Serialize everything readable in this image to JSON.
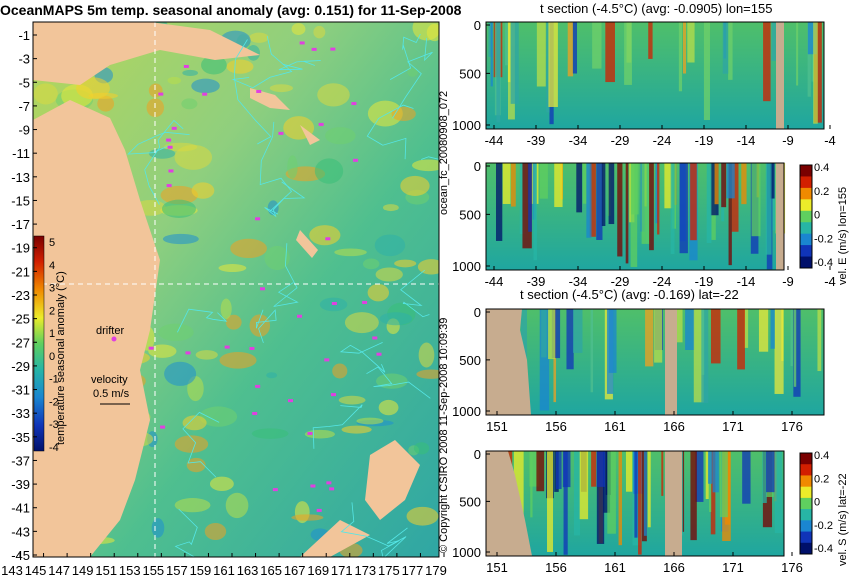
{
  "chart_data": [
    {
      "type": "heatmap",
      "title": "OceanMAPS 5m temp. seasonal anomaly (avg: 0.151) for 11-Sep-2008",
      "x_ticks": [
        "143",
        "145",
        "147",
        "149",
        "151",
        "153",
        "155",
        "157",
        "159",
        "161",
        "163",
        "165",
        "167",
        "169",
        "171",
        "173",
        "175",
        "177",
        "179"
      ],
      "y_ticks": [
        "-1",
        "-3",
        "-5",
        "-7",
        "-9",
        "-11",
        "-13",
        "-15",
        "-17",
        "-19",
        "-21",
        "-23",
        "-25",
        "-27",
        "-29",
        "-31",
        "-33",
        "-35",
        "-37",
        "-39",
        "-41",
        "-43",
        "-45"
      ],
      "colorbar": {
        "label": "temperature seasonal anomaly (°C)",
        "ticks": [
          "5",
          "4",
          "3",
          "2",
          "1",
          "0",
          "-1",
          "-2",
          "-3",
          "-4"
        ],
        "range": [
          -4,
          5
        ]
      },
      "annotations": {
        "drifter": "drifter",
        "velocity": "velocity",
        "velocity_value": "0.5 m/s"
      },
      "crosshair": {
        "lon": 155,
        "lat": -22
      }
    },
    {
      "type": "heatmap",
      "title": "t section (-4.5°C) (avg: -0.0905) lon=155",
      "x_ticks": [
        "-44",
        "-39",
        "-34",
        "-29",
        "-24",
        "-19",
        "-14",
        "-9",
        "-4"
      ],
      "y_ticks": [
        "0",
        "500",
        "1000"
      ]
    },
    {
      "type": "heatmap",
      "x_ticks": [
        "-44",
        "-39",
        "-34",
        "-29",
        "-24",
        "-19",
        "-14",
        "-9",
        "-4"
      ],
      "y_ticks": [
        "0",
        "500",
        "1000"
      ],
      "colorbar": {
        "label": "vel. E (m/s) lon=155",
        "ticks": [
          "0.4",
          "0.2",
          "0",
          "-0.2",
          "-0.4"
        ],
        "range": [
          -0.4,
          0.4
        ]
      }
    },
    {
      "type": "heatmap",
      "title": "t section (-4.5°C) (avg: -0.169) lat=-22",
      "x_ticks": [
        "151",
        "156",
        "161",
        "166",
        "171",
        "176"
      ],
      "y_ticks": [
        "0",
        "500",
        "1000"
      ]
    },
    {
      "type": "heatmap",
      "x_ticks": [
        "151",
        "156",
        "161",
        "166",
        "171",
        "176"
      ],
      "y_ticks": [
        "0",
        "500",
        "1000"
      ],
      "colorbar": {
        "label": "vel. S (m/s) lat=-22",
        "ticks": [
          "0.4",
          "0.2",
          "0",
          "-0.2",
          "-0.4"
        ],
        "range": [
          -0.4,
          0.4
        ]
      }
    }
  ],
  "side_text": {
    "run_id": "ocean_fc_20080908_072",
    "copyright": "© Copyright CSIRO 2008  11-Sep-2008 10:09:39"
  },
  "colors": {
    "land": "#f2c59a",
    "section_land": "#c7ac8f",
    "contour": "#55e6e6",
    "drifter": "#e040e0"
  }
}
